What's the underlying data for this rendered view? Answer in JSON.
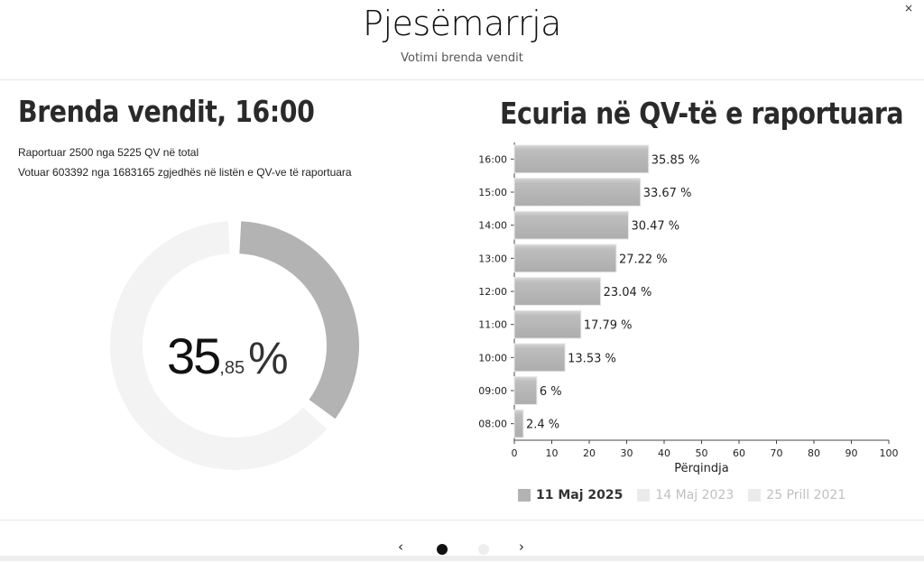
{
  "header": {
    "title": "Pjesëmarrja",
    "subtitle": "Votimi brenda vendit",
    "close_label": "×"
  },
  "left": {
    "heading": "Brenda vendit, 16:00",
    "reported_line": "Raportuar 2500 nga 5225 QV në total",
    "voted_line": "Votuar 603392 nga 1683165 zgjedhës në listën e QV-ve të raportuara",
    "percent_int": "35",
    "percent_dec": ",85",
    "percent_sign": "%",
    "percent_value": 35.85,
    "colors": {
      "filled": "#b3b3b3",
      "empty": "#f3f3f3"
    }
  },
  "right": {
    "heading": "Ecuria në QV-të e raportuara"
  },
  "chart_data": {
    "type": "bar",
    "orientation": "horizontal",
    "categories": [
      "16:00",
      "15:00",
      "14:00",
      "13:00",
      "12:00",
      "11:00",
      "10:00",
      "09:00",
      "08:00"
    ],
    "series": [
      {
        "name": "11 Maj 2025",
        "values": [
          35.85,
          33.67,
          30.47,
          27.22,
          23.04,
          17.79,
          13.53,
          6,
          2.4
        ],
        "color": "#b3b3b3"
      }
    ],
    "data_labels": [
      "35.85 %",
      "33.67 %",
      "30.47 %",
      "27.22 %",
      "23.04 %",
      "17.79 %",
      "13.53 %",
      "6 %",
      "2.4 %"
    ],
    "xlabel": "Përqindja",
    "xlim": [
      0,
      100
    ],
    "xticks": [
      0,
      10,
      20,
      30,
      40,
      50,
      60,
      70,
      80,
      90,
      100
    ],
    "grid": false,
    "legend_position": "bottom"
  },
  "legend": [
    {
      "label": "11 Maj 2025",
      "color": "#b3b3b3",
      "text_color": "#333333",
      "bold": true
    },
    {
      "label": "14 Maj 2023",
      "color": "#ebebeb",
      "text_color": "#c0c0c0",
      "bold": false
    },
    {
      "label": "25 Prill 2021",
      "color": "#ebebeb",
      "text_color": "#c0c0c0",
      "bold": false
    }
  ],
  "footer": {
    "prev_label": "‹",
    "next_label": "›"
  }
}
